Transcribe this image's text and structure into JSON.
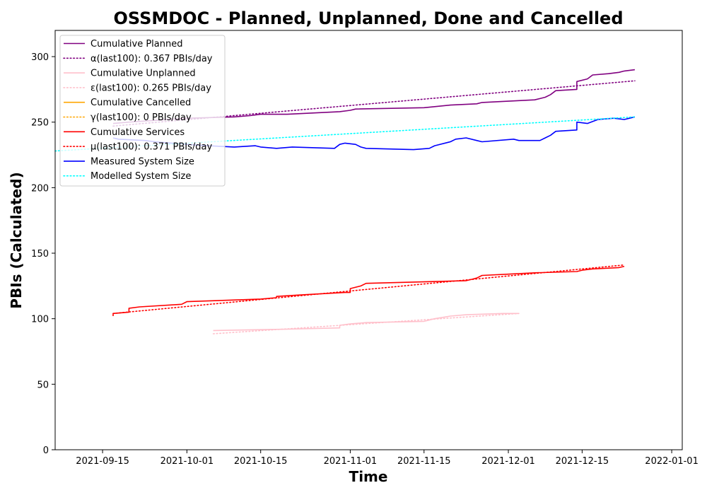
{
  "chart_data": {
    "type": "line",
    "title": "OSSMDOC - Planned, Unplanned, Done  and Cancelled",
    "xlabel": "Time",
    "ylabel": "PBIs (Calculated)",
    "x_range": [
      "2021-09-06",
      "2022-01-03"
    ],
    "ylim": [
      0,
      320
    ],
    "x_ticks": [
      "2021-09-15",
      "2021-10-01",
      "2021-10-15",
      "2021-11-01",
      "2021-11-15",
      "2021-12-01",
      "2021-12-15",
      "2022-01-01"
    ],
    "y_ticks": [
      0,
      50,
      100,
      150,
      200,
      250,
      300
    ],
    "grid": false,
    "legend_placement": "top-left",
    "series": [
      {
        "name": "Cumulative Planned",
        "style": "solid",
        "color": "#800080",
        "points": [
          [
            "2021-09-17",
            249
          ],
          [
            "2021-09-20",
            250
          ],
          [
            "2021-10-01",
            253
          ],
          [
            "2021-10-10",
            254
          ],
          [
            "2021-10-13",
            255
          ],
          [
            "2021-10-15",
            256
          ],
          [
            "2021-10-20",
            256
          ],
          [
            "2021-10-30",
            258
          ],
          [
            "2021-11-01",
            259
          ],
          [
            "2021-11-02",
            260
          ],
          [
            "2021-11-15",
            261
          ],
          [
            "2021-11-20",
            263
          ],
          [
            "2021-11-25",
            264
          ],
          [
            "2021-11-26",
            265
          ],
          [
            "2021-12-06",
            267
          ],
          [
            "2021-12-08",
            269
          ],
          [
            "2021-12-09",
            271
          ],
          [
            "2021-12-10",
            274
          ],
          [
            "2021-12-14",
            275
          ],
          [
            "2021-12-14",
            281
          ],
          [
            "2021-12-16",
            283
          ],
          [
            "2021-12-17",
            286
          ],
          [
            "2021-12-20",
            287
          ],
          [
            "2021-12-22",
            288
          ],
          [
            "2021-12-23",
            289
          ],
          [
            "2021-12-25",
            290
          ]
        ]
      },
      {
        "name": "α(last100): 0.367 PBIs/day",
        "style": "dotted",
        "color": "#800080",
        "points": [
          [
            "2021-09-17",
            247
          ],
          [
            "2021-12-25",
            281.5
          ]
        ]
      },
      {
        "name": "Cumulative Unplanned",
        "style": "solid",
        "color": "#ffc0cb",
        "points": [
          [
            "2021-10-06",
            91
          ],
          [
            "2021-10-20",
            92
          ],
          [
            "2021-10-30",
            93
          ],
          [
            "2021-10-30",
            95
          ],
          [
            "2021-11-01",
            96
          ],
          [
            "2021-11-04",
            97
          ],
          [
            "2021-11-15",
            98
          ],
          [
            "2021-11-17",
            100
          ],
          [
            "2021-11-20",
            102
          ],
          [
            "2021-11-23",
            103
          ],
          [
            "2021-11-30",
            104
          ],
          [
            "2021-12-03",
            104
          ]
        ]
      },
      {
        "name": "ε(last100): 0.265 PBIs/day",
        "style": "dotted",
        "color": "#ffc0cb",
        "points": [
          [
            "2021-10-06",
            88.5
          ],
          [
            "2021-12-03",
            104
          ]
        ]
      },
      {
        "name": "Cumulative Cancelled",
        "style": "solid",
        "color": "#ffa500",
        "points": []
      },
      {
        "name": "γ(last100): 0 PBIs/day",
        "style": "dotted",
        "color": "#ffa500",
        "points": []
      },
      {
        "name": "Cumulative Services",
        "style": "solid",
        "color": "#ff0000",
        "points": [
          [
            "2021-09-17",
            102
          ],
          [
            "2021-09-17",
            104
          ],
          [
            "2021-09-20",
            105
          ],
          [
            "2021-09-20",
            108
          ],
          [
            "2021-09-22",
            109
          ],
          [
            "2021-09-30",
            111
          ],
          [
            "2021-10-01",
            113
          ],
          [
            "2021-10-15",
            115
          ],
          [
            "2021-10-18",
            116
          ],
          [
            "2021-10-18",
            117
          ],
          [
            "2021-10-22",
            118
          ],
          [
            "2021-10-31",
            120
          ],
          [
            "2021-11-01",
            120
          ],
          [
            "2021-11-01",
            123
          ],
          [
            "2021-11-03",
            125
          ],
          [
            "2021-11-04",
            127
          ],
          [
            "2021-11-23",
            129
          ],
          [
            "2021-11-24",
            130
          ],
          [
            "2021-11-25",
            131
          ],
          [
            "2021-11-26",
            133
          ],
          [
            "2021-12-01",
            134
          ],
          [
            "2021-12-06",
            135
          ],
          [
            "2021-12-14",
            136
          ],
          [
            "2021-12-15",
            137
          ],
          [
            "2021-12-17",
            138
          ],
          [
            "2021-12-22",
            139
          ],
          [
            "2021-12-23",
            140
          ]
        ]
      },
      {
        "name": "μ(last100): 0.371 PBIs/day",
        "style": "dotted",
        "color": "#ff0000",
        "points": [
          [
            "2021-09-17",
            104
          ],
          [
            "2021-12-23",
            141
          ]
        ]
      },
      {
        "name": "Measured System Size",
        "style": "solid",
        "color": "#0000ff",
        "points": [
          [
            "2021-09-17",
            238
          ],
          [
            "2021-09-18",
            237
          ],
          [
            "2021-09-23",
            236
          ],
          [
            "2021-09-25",
            235
          ],
          [
            "2021-10-01",
            233
          ],
          [
            "2021-10-05",
            232
          ],
          [
            "2021-10-10",
            231
          ],
          [
            "2021-10-14",
            232
          ],
          [
            "2021-10-15",
            231
          ],
          [
            "2021-10-18",
            230
          ],
          [
            "2021-10-21",
            231
          ],
          [
            "2021-10-29",
            230
          ],
          [
            "2021-10-30",
            233
          ],
          [
            "2021-10-31",
            234
          ],
          [
            "2021-11-02",
            233
          ],
          [
            "2021-11-03",
            231
          ],
          [
            "2021-11-04",
            230
          ],
          [
            "2021-11-13",
            229
          ],
          [
            "2021-11-16",
            230
          ],
          [
            "2021-11-17",
            232
          ],
          [
            "2021-11-20",
            235
          ],
          [
            "2021-11-21",
            237
          ],
          [
            "2021-11-23",
            238
          ],
          [
            "2021-11-25",
            236
          ],
          [
            "2021-11-26",
            235
          ],
          [
            "2021-12-02",
            237
          ],
          [
            "2021-12-03",
            236
          ],
          [
            "2021-12-07",
            236
          ],
          [
            "2021-12-08",
            238
          ],
          [
            "2021-12-09",
            240
          ],
          [
            "2021-12-10",
            243
          ],
          [
            "2021-12-14",
            244
          ],
          [
            "2021-12-14",
            250
          ],
          [
            "2021-12-16",
            249
          ],
          [
            "2021-12-18",
            252
          ],
          [
            "2021-12-21",
            253
          ],
          [
            "2021-12-23",
            252
          ],
          [
            "2021-12-25",
            254
          ]
        ]
      },
      {
        "name": "Modelled System Size",
        "style": "dotted",
        "color": "#00ffff",
        "points": [
          [
            "2021-09-06",
            228
          ],
          [
            "2021-12-25",
            254
          ]
        ]
      }
    ]
  }
}
